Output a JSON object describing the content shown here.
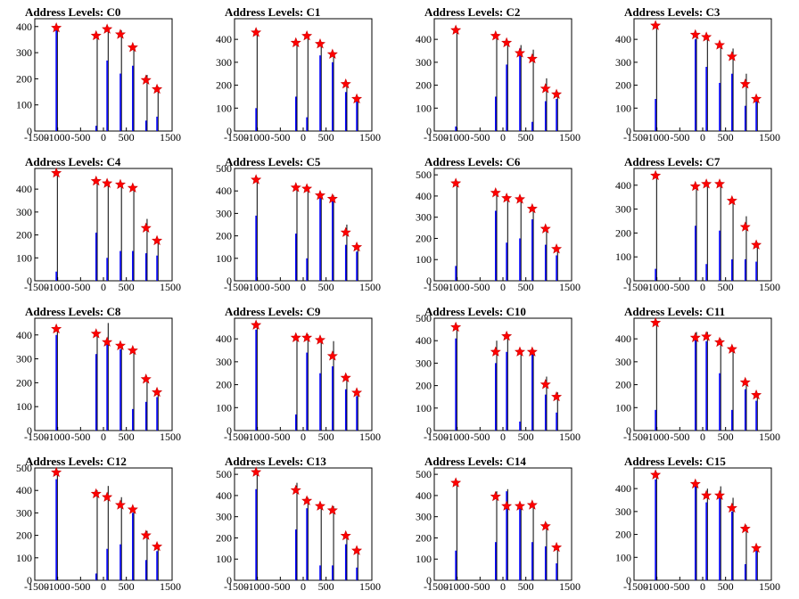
{
  "chart_data": [
    {
      "type": "bar",
      "title": "Address Levels: C0",
      "xlim": [
        -1500,
        1500
      ],
      "ylim": [
        0,
        430
      ],
      "yticks": [
        0,
        100,
        200,
        300,
        400
      ],
      "xticks": [
        -1500,
        -1000,
        -500,
        0,
        500,
        1500
      ],
      "peaks": [
        {
          "x": -1030,
          "blue": 390,
          "black": 390,
          "star": 395
        },
        {
          "x": -160,
          "blue": 20,
          "black": 370,
          "star": 365
        },
        {
          "x": 80,
          "blue": 270,
          "black": 390,
          "star": 390
        },
        {
          "x": 370,
          "blue": 220,
          "black": 385,
          "star": 370
        },
        {
          "x": 640,
          "blue": 250,
          "black": 325,
          "star": 320
        },
        {
          "x": 930,
          "blue": 40,
          "black": 215,
          "star": 195
        },
        {
          "x": 1170,
          "blue": 55,
          "black": 170,
          "star": 160
        }
      ]
    },
    {
      "type": "bar",
      "title": "Address Levels: C1",
      "xlim": [
        -1500,
        1500
      ],
      "ylim": [
        0,
        490
      ],
      "yticks": [
        0,
        100,
        200,
        300,
        400
      ],
      "xticks": [
        -1500,
        -1000,
        -500,
        0,
        500,
        1500
      ],
      "peaks": [
        {
          "x": -1030,
          "blue": 100,
          "black": 440,
          "star": 430
        },
        {
          "x": -160,
          "blue": 150,
          "black": 390,
          "star": 385
        },
        {
          "x": 80,
          "blue": 60,
          "black": 420,
          "star": 415
        },
        {
          "x": 370,
          "blue": 330,
          "black": 385,
          "star": 380
        },
        {
          "x": 640,
          "blue": 300,
          "black": 340,
          "star": 335
        },
        {
          "x": 930,
          "blue": 170,
          "black": 210,
          "star": 205
        },
        {
          "x": 1170,
          "blue": 130,
          "black": 150,
          "star": 140
        }
      ]
    },
    {
      "type": "bar",
      "title": "Address Levels: C2",
      "xlim": [
        -1500,
        1500
      ],
      "ylim": [
        0,
        490
      ],
      "yticks": [
        0,
        100,
        200,
        300,
        400
      ],
      "xticks": [
        -1500,
        -1000,
        -500,
        0,
        500,
        1500
      ],
      "peaks": [
        {
          "x": -1030,
          "blue": 20,
          "black": 450,
          "star": 440
        },
        {
          "x": -160,
          "blue": 150,
          "black": 420,
          "star": 415
        },
        {
          "x": 80,
          "blue": 290,
          "black": 380,
          "star": 385
        },
        {
          "x": 370,
          "blue": 360,
          "black": 375,
          "star": 340
        },
        {
          "x": 640,
          "blue": 40,
          "black": 355,
          "star": 315
        },
        {
          "x": 930,
          "blue": 130,
          "black": 230,
          "star": 185
        },
        {
          "x": 1170,
          "blue": 140,
          "black": 170,
          "star": 160
        }
      ]
    },
    {
      "type": "bar",
      "title": "Address Levels: C3",
      "xlim": [
        -1500,
        1500
      ],
      "ylim": [
        0,
        490
      ],
      "yticks": [
        0,
        100,
        200,
        300,
        400
      ],
      "xticks": [
        -1500,
        -1000,
        -500,
        0,
        500,
        1500
      ],
      "peaks": [
        {
          "x": -1030,
          "blue": 140,
          "black": 460,
          "star": 460
        },
        {
          "x": -160,
          "blue": 400,
          "black": 420,
          "star": 420
        },
        {
          "x": 80,
          "blue": 280,
          "black": 420,
          "star": 410
        },
        {
          "x": 370,
          "blue": 210,
          "black": 380,
          "star": 375
        },
        {
          "x": 640,
          "blue": 250,
          "black": 360,
          "star": 325
        },
        {
          "x": 930,
          "blue": 110,
          "black": 250,
          "star": 205
        },
        {
          "x": 1170,
          "blue": 140,
          "black": 150,
          "star": 140
        }
      ]
    },
    {
      "type": "bar",
      "title": "Address Levels: C4",
      "xlim": [
        -1500,
        1500
      ],
      "ylim": [
        0,
        490
      ],
      "yticks": [
        0,
        100,
        200,
        300,
        400
      ],
      "xticks": [
        -1500,
        -1000,
        -500,
        0,
        500,
        1500
      ],
      "peaks": [
        {
          "x": -1030,
          "blue": 40,
          "black": 480,
          "star": 470
        },
        {
          "x": -160,
          "blue": 210,
          "black": 440,
          "star": 435
        },
        {
          "x": 80,
          "blue": 100,
          "black": 430,
          "star": 425
        },
        {
          "x": 370,
          "blue": 130,
          "black": 420,
          "star": 420
        },
        {
          "x": 640,
          "blue": 130,
          "black": 410,
          "star": 405
        },
        {
          "x": 930,
          "blue": 120,
          "black": 270,
          "star": 230
        },
        {
          "x": 1170,
          "blue": 110,
          "black": 180,
          "star": 175
        }
      ]
    },
    {
      "type": "bar",
      "title": "Address Levels: C5",
      "xlim": [
        -1500,
        1500
      ],
      "ylim": [
        0,
        500
      ],
      "yticks": [
        0,
        100,
        200,
        300,
        400,
        500
      ],
      "xticks": [
        -1500,
        -1000,
        -500,
        0,
        500,
        1500
      ],
      "peaks": [
        {
          "x": -1030,
          "blue": 290,
          "black": 460,
          "star": 450
        },
        {
          "x": -160,
          "blue": 210,
          "black": 420,
          "star": 415
        },
        {
          "x": 80,
          "blue": 100,
          "black": 420,
          "star": 410
        },
        {
          "x": 370,
          "blue": 370,
          "black": 390,
          "star": 380
        },
        {
          "x": 640,
          "blue": 370,
          "black": 380,
          "star": 365
        },
        {
          "x": 930,
          "blue": 160,
          "black": 250,
          "star": 215
        },
        {
          "x": 1170,
          "blue": 130,
          "black": 160,
          "star": 150
        }
      ]
    },
    {
      "type": "bar",
      "title": "Address Levels: C6",
      "xlim": [
        -1500,
        1500
      ],
      "ylim": [
        0,
        530
      ],
      "yticks": [
        0,
        100,
        200,
        300,
        400,
        500
      ],
      "xticks": [
        -1500,
        -1000,
        -500,
        0,
        500,
        1500
      ],
      "peaks": [
        {
          "x": -1030,
          "blue": 70,
          "black": 470,
          "star": 460
        },
        {
          "x": -160,
          "blue": 330,
          "black": 420,
          "star": 415
        },
        {
          "x": 80,
          "blue": 180,
          "black": 400,
          "star": 390
        },
        {
          "x": 370,
          "blue": 200,
          "black": 390,
          "star": 385
        },
        {
          "x": 640,
          "blue": 290,
          "black": 350,
          "star": 340
        },
        {
          "x": 930,
          "blue": 170,
          "black": 250,
          "star": 245
        },
        {
          "x": 1170,
          "blue": 120,
          "black": 150,
          "star": 150
        }
      ]
    },
    {
      "type": "bar",
      "title": "Address Levels: C7",
      "xlim": [
        -1500,
        1500
      ],
      "ylim": [
        0,
        470
      ],
      "yticks": [
        0,
        100,
        200,
        300,
        400
      ],
      "xticks": [
        -1500,
        -1000,
        -500,
        0,
        500,
        1500
      ],
      "peaks": [
        {
          "x": -1030,
          "blue": 50,
          "black": 450,
          "star": 440
        },
        {
          "x": -160,
          "blue": 230,
          "black": 400,
          "star": 395
        },
        {
          "x": 80,
          "blue": 70,
          "black": 410,
          "star": 405
        },
        {
          "x": 370,
          "blue": 210,
          "black": 410,
          "star": 405
        },
        {
          "x": 640,
          "blue": 90,
          "black": 340,
          "star": 335
        },
        {
          "x": 930,
          "blue": 90,
          "black": 270,
          "star": 225
        },
        {
          "x": 1170,
          "blue": 80,
          "black": 160,
          "star": 150
        }
      ]
    },
    {
      "type": "bar",
      "title": "Address Levels: C8",
      "xlim": [
        -1500,
        1500
      ],
      "ylim": [
        0,
        470
      ],
      "yticks": [
        0,
        100,
        200,
        300,
        400
      ],
      "xticks": [
        -1500,
        -1000,
        -500,
        0,
        500,
        1500
      ],
      "peaks": [
        {
          "x": -1030,
          "blue": 400,
          "black": 430,
          "star": 425
        },
        {
          "x": -160,
          "blue": 320,
          "black": 410,
          "star": 405
        },
        {
          "x": 80,
          "blue": 380,
          "black": 450,
          "star": 370
        },
        {
          "x": 370,
          "blue": 340,
          "black": 360,
          "star": 355
        },
        {
          "x": 640,
          "blue": 90,
          "black": 340,
          "star": 335
        },
        {
          "x": 930,
          "blue": 120,
          "black": 220,
          "star": 215
        },
        {
          "x": 1170,
          "blue": 140,
          "black": 160,
          "star": 160
        }
      ]
    },
    {
      "type": "bar",
      "title": "Address Levels: C9",
      "xlim": [
        -1500,
        1500
      ],
      "ylim": [
        0,
        490
      ],
      "yticks": [
        0,
        100,
        200,
        300,
        400
      ],
      "xticks": [
        -1500,
        -1000,
        -500,
        0,
        500,
        1500
      ],
      "peaks": [
        {
          "x": -1030,
          "blue": 440,
          "black": 470,
          "star": 460
        },
        {
          "x": -160,
          "blue": 70,
          "black": 410,
          "star": 405
        },
        {
          "x": 80,
          "blue": 340,
          "black": 420,
          "star": 405
        },
        {
          "x": 370,
          "blue": 250,
          "black": 400,
          "star": 395
        },
        {
          "x": 640,
          "blue": 280,
          "black": 390,
          "star": 325
        },
        {
          "x": 930,
          "blue": 180,
          "black": 240,
          "star": 230
        },
        {
          "x": 1170,
          "blue": 150,
          "black": 170,
          "star": 165
        }
      ]
    },
    {
      "type": "bar",
      "title": "Address Levels: C10",
      "xlim": [
        -1500,
        1500
      ],
      "ylim": [
        0,
        500
      ],
      "yticks": [
        0,
        100,
        200,
        300,
        400,
        500
      ],
      "xticks": [
        -1500,
        -1000,
        -500,
        0,
        500,
        1500
      ],
      "peaks": [
        {
          "x": -1030,
          "blue": 410,
          "black": 470,
          "star": 460
        },
        {
          "x": -160,
          "blue": 300,
          "black": 400,
          "star": 350
        },
        {
          "x": 80,
          "blue": 350,
          "black": 430,
          "star": 420
        },
        {
          "x": 370,
          "blue": 40,
          "black": 360,
          "star": 350
        },
        {
          "x": 640,
          "blue": 350,
          "black": 360,
          "star": 350
        },
        {
          "x": 930,
          "blue": 160,
          "black": 240,
          "star": 205
        },
        {
          "x": 1170,
          "blue": 80,
          "black": 170,
          "star": 150
        }
      ]
    },
    {
      "type": "bar",
      "title": "Address Levels: C11",
      "xlim": [
        -1500,
        1500
      ],
      "ylim": [
        0,
        490
      ],
      "yticks": [
        0,
        100,
        200,
        300,
        400
      ],
      "xticks": [
        -1500,
        -1000,
        -500,
        0,
        500,
        1500
      ],
      "peaks": [
        {
          "x": -1030,
          "blue": 90,
          "black": 480,
          "star": 470
        },
        {
          "x": -160,
          "blue": 420,
          "black": 430,
          "star": 405
        },
        {
          "x": 80,
          "blue": 390,
          "black": 430,
          "star": 410
        },
        {
          "x": 370,
          "blue": 250,
          "black": 400,
          "star": 385
        },
        {
          "x": 640,
          "blue": 90,
          "black": 360,
          "star": 355
        },
        {
          "x": 930,
          "blue": 180,
          "black": 220,
          "star": 210
        },
        {
          "x": 1170,
          "blue": 130,
          "black": 160,
          "star": 155
        }
      ]
    },
    {
      "type": "bar",
      "title": "Address Levels: C12",
      "xlim": [
        -1500,
        1500
      ],
      "ylim": [
        0,
        500
      ],
      "yticks": [
        0,
        100,
        200,
        300,
        400,
        500
      ],
      "xticks": [
        -1500,
        -1000,
        -500,
        0,
        500,
        1500
      ],
      "peaks": [
        {
          "x": -1030,
          "blue": 450,
          "black": 490,
          "star": 480
        },
        {
          "x": -160,
          "blue": 30,
          "black": 400,
          "star": 385
        },
        {
          "x": 80,
          "blue": 140,
          "black": 420,
          "star": 370
        },
        {
          "x": 370,
          "blue": 160,
          "black": 370,
          "star": 335
        },
        {
          "x": 640,
          "blue": 300,
          "black": 320,
          "star": 315
        },
        {
          "x": 930,
          "blue": 90,
          "black": 220,
          "star": 200
        },
        {
          "x": 1170,
          "blue": 130,
          "black": 160,
          "star": 150
        }
      ]
    },
    {
      "type": "bar",
      "title": "Address Levels: C13",
      "xlim": [
        -1500,
        1500
      ],
      "ylim": [
        0,
        530
      ],
      "yticks": [
        0,
        100,
        200,
        300,
        400,
        500
      ],
      "xticks": [
        -1500,
        -1000,
        -500,
        0,
        500,
        1500
      ],
      "peaks": [
        {
          "x": -1030,
          "blue": 430,
          "black": 520,
          "star": 510
        },
        {
          "x": -160,
          "blue": 240,
          "black": 460,
          "star": 425
        },
        {
          "x": 80,
          "blue": 340,
          "black": 390,
          "star": 375
        },
        {
          "x": 370,
          "blue": 70,
          "black": 360,
          "star": 350
        },
        {
          "x": 640,
          "blue": 70,
          "black": 350,
          "star": 330
        },
        {
          "x": 930,
          "blue": 170,
          "black": 220,
          "star": 210
        },
        {
          "x": 1170,
          "blue": 60,
          "black": 150,
          "star": 140
        }
      ]
    },
    {
      "type": "bar",
      "title": "Address Levels: C14",
      "xlim": [
        -1500,
        1500
      ],
      "ylim": [
        0,
        530
      ],
      "yticks": [
        0,
        100,
        200,
        300,
        400,
        500
      ],
      "xticks": [
        -1500,
        -1000,
        -500,
        0,
        500,
        1500
      ],
      "peaks": [
        {
          "x": -1030,
          "blue": 140,
          "black": 470,
          "star": 460
        },
        {
          "x": -160,
          "blue": 180,
          "black": 420,
          "star": 395
        },
        {
          "x": 80,
          "blue": 420,
          "black": 430,
          "star": 350
        },
        {
          "x": 370,
          "blue": 340,
          "black": 360,
          "star": 350
        },
        {
          "x": 640,
          "blue": 180,
          "black": 360,
          "star": 355
        },
        {
          "x": 930,
          "blue": 160,
          "black": 270,
          "star": 255
        },
        {
          "x": 1170,
          "blue": 80,
          "black": 160,
          "star": 155
        }
      ]
    },
    {
      "type": "bar",
      "title": "Address Levels: C15",
      "xlim": [
        -1500,
        1500
      ],
      "ylim": [
        0,
        490
      ],
      "yticks": [
        0,
        100,
        200,
        300,
        400
      ],
      "xticks": [
        -1500,
        -1000,
        -500,
        0,
        500,
        1500
      ],
      "peaks": [
        {
          "x": -1030,
          "blue": 440,
          "black": 470,
          "star": 460
        },
        {
          "x": -160,
          "blue": 420,
          "black": 430,
          "star": 420
        },
        {
          "x": 80,
          "blue": 340,
          "black": 400,
          "star": 370
        },
        {
          "x": 370,
          "blue": 370,
          "black": 410,
          "star": 370
        },
        {
          "x": 640,
          "blue": 300,
          "black": 360,
          "star": 315
        },
        {
          "x": 930,
          "blue": 70,
          "black": 240,
          "star": 225
        },
        {
          "x": 1170,
          "blue": 130,
          "black": 150,
          "star": 140
        }
      ]
    }
  ]
}
